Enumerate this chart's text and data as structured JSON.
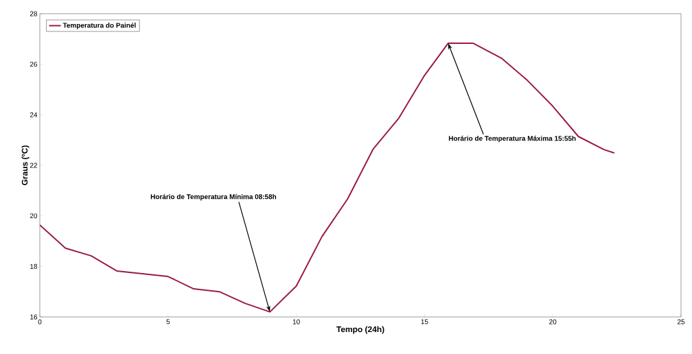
{
  "chart_data": {
    "type": "line",
    "xlabel": "Tempo (24h)",
    "ylabel": "Graus  (ºC)",
    "x": [
      0,
      1,
      2,
      3,
      4,
      5,
      6,
      7,
      8,
      8.97,
      10,
      11,
      12,
      13,
      14,
      15,
      15.92,
      16.9,
      18,
      19,
      20,
      21,
      22,
      22.4
    ],
    "series": [
      {
        "name": "Temperatura do Painél",
        "color": "#9b1b40",
        "values": [
          19.64,
          18.72,
          18.42,
          17.82,
          17.71,
          17.6,
          17.11,
          17.0,
          16.54,
          16.2,
          17.22,
          19.18,
          20.67,
          22.65,
          23.87,
          25.56,
          26.83,
          26.83,
          26.24,
          25.37,
          24.34,
          23.14,
          22.62,
          22.49
        ]
      }
    ],
    "xlim": [
      0,
      25
    ],
    "ylim": [
      16,
      28
    ],
    "xticks": [
      0,
      5,
      10,
      15,
      20,
      25
    ],
    "yticks": [
      16,
      18,
      20,
      22,
      24,
      26,
      28
    ],
    "annotations": [
      {
        "text": "Horário de Temperatura Mínima 08:58h",
        "x": 8.97,
        "y": 16.2
      },
      {
        "text": "Horário de Temperatura Máxima 15:55h",
        "x": 15.92,
        "y": 26.83
      }
    ],
    "grid": false,
    "legend": "top left",
    "marker": "none",
    "line_style": "solid"
  }
}
